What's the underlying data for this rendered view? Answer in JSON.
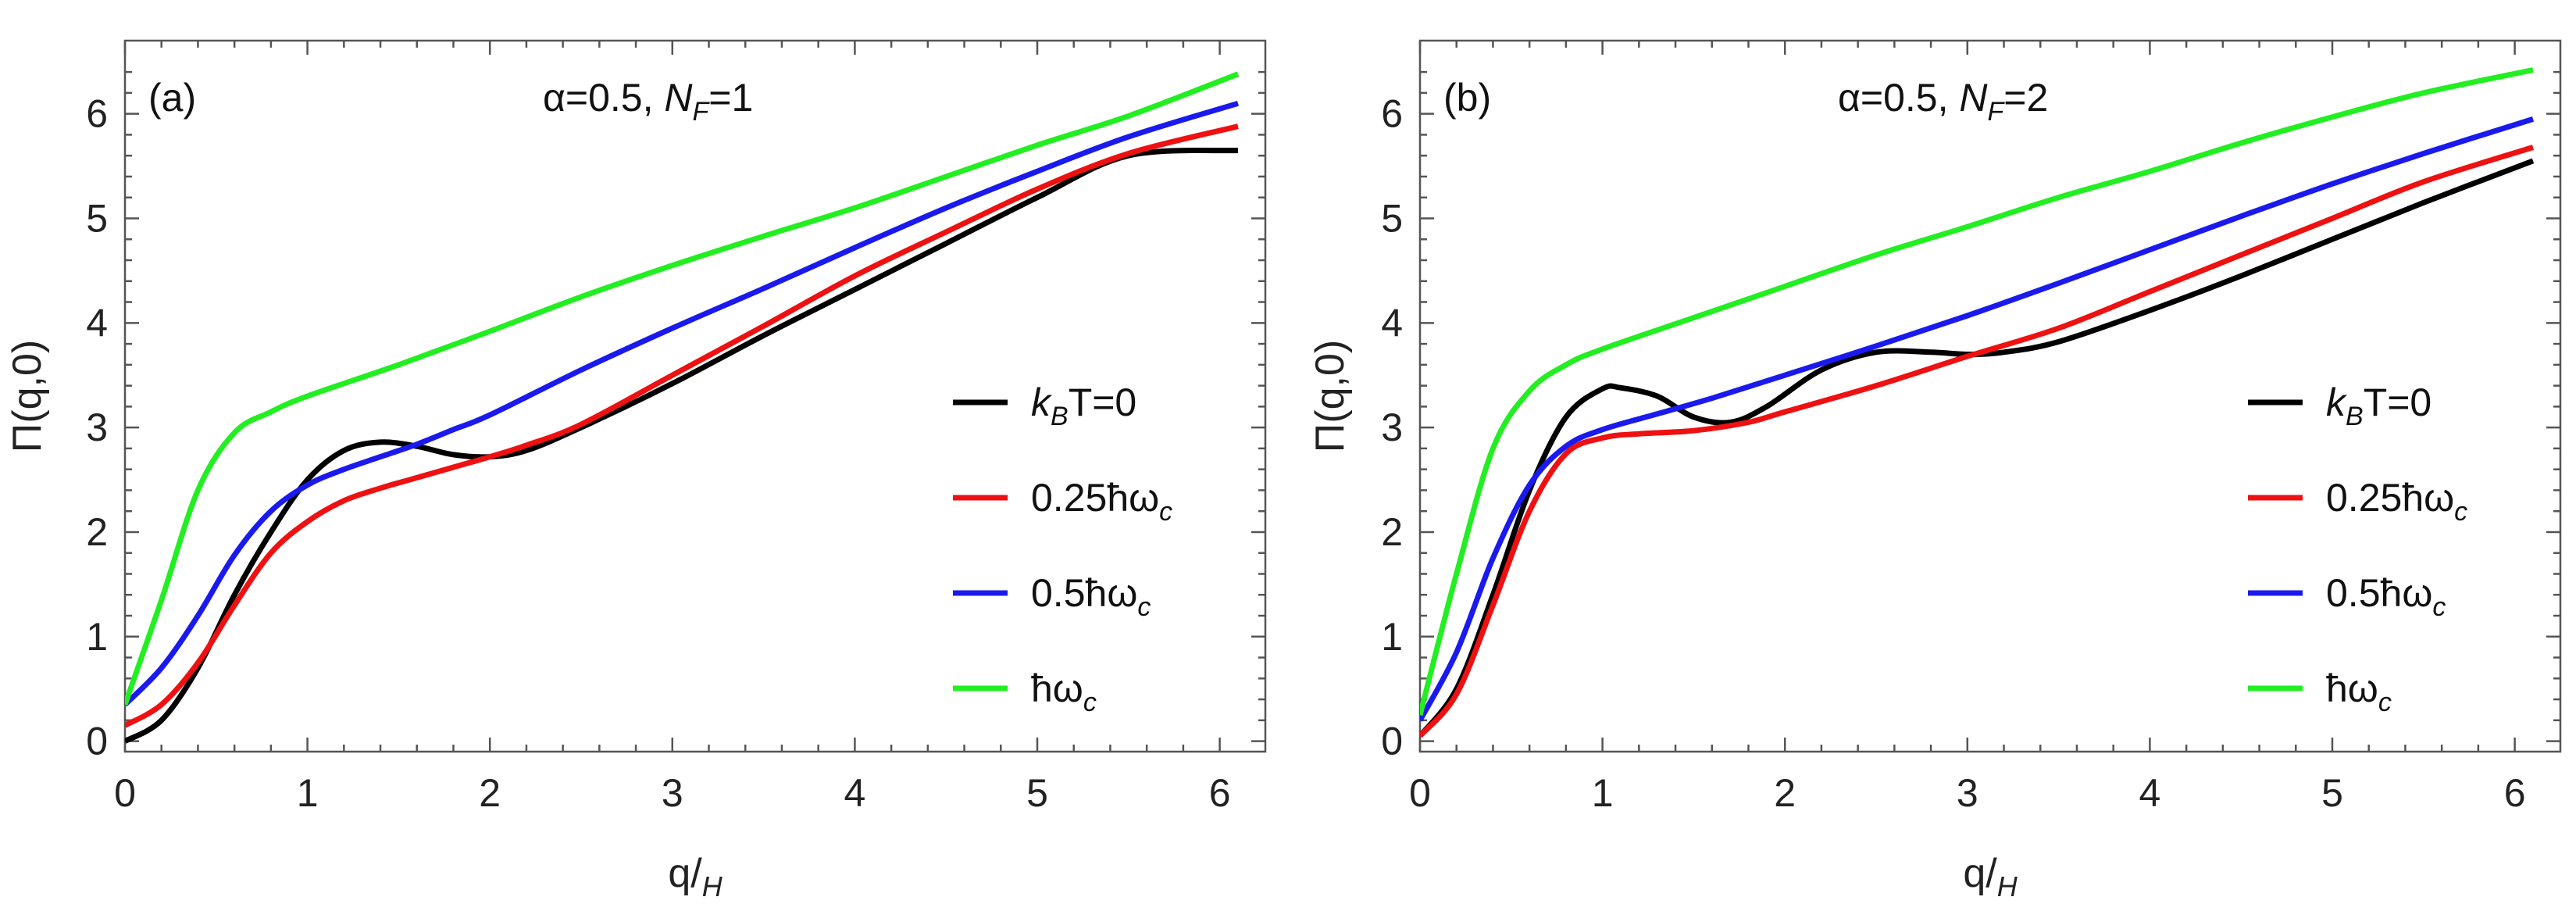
{
  "chart_data": [
    {
      "type": "line",
      "panel_label": "(a)",
      "annotation": {
        "prefix": "α=0.5, ",
        "nf_var": "N",
        "nf_sub": "F",
        "nf_value": "=1"
      },
      "xlabel": {
        "base": "q/",
        "sub": "H"
      },
      "ylabel": "Π(q,0)",
      "xlim": [
        0,
        6.25
      ],
      "ylim": [
        -0.1,
        6.7
      ],
      "xticks": [
        "0",
        "1",
        "2",
        "3",
        "4",
        "5",
        "6"
      ],
      "yticks": [
        "0",
        "1",
        "2",
        "3",
        "4",
        "5",
        "6"
      ],
      "legend_position": "center-right",
      "series": [
        {
          "name": "kBT=0",
          "legend": {
            "var": "k",
            "sub": "B",
            "rest": "T=0"
          },
          "color": "#000000",
          "x": [
            0,
            0.2,
            0.4,
            0.6,
            0.8,
            1.0,
            1.2,
            1.4,
            1.6,
            1.8,
            2.0,
            2.2,
            2.5,
            3.0,
            3.5,
            4.0,
            4.5,
            5.0,
            5.5,
            6.1
          ],
          "y": [
            0.0,
            0.2,
            0.7,
            1.4,
            2.0,
            2.5,
            2.78,
            2.86,
            2.82,
            2.74,
            2.72,
            2.78,
            3.0,
            3.42,
            3.88,
            4.32,
            4.76,
            5.2,
            5.6,
            5.65
          ]
        },
        {
          "name": "0.25ħωc",
          "legend": {
            "var": "0.25ħω",
            "sub": "c",
            "rest": ""
          },
          "color": "#ee1111",
          "x": [
            0,
            0.2,
            0.4,
            0.6,
            0.8,
            1.0,
            1.2,
            1.4,
            1.6,
            1.8,
            2.0,
            2.2,
            2.5,
            3.0,
            3.5,
            4.0,
            4.5,
            5.0,
            5.5,
            6.1
          ],
          "y": [
            0.15,
            0.35,
            0.75,
            1.3,
            1.8,
            2.1,
            2.3,
            2.42,
            2.52,
            2.62,
            2.72,
            2.83,
            3.03,
            3.5,
            3.97,
            4.45,
            4.87,
            5.28,
            5.62,
            5.88
          ]
        },
        {
          "name": "0.5ħωc",
          "legend": {
            "var": "0.5ħω",
            "sub": "c",
            "rest": ""
          },
          "color": "#1a1aee",
          "x": [
            0,
            0.2,
            0.4,
            0.6,
            0.8,
            1.0,
            1.2,
            1.4,
            1.6,
            1.8,
            2.0,
            2.5,
            3.0,
            3.5,
            4.0,
            4.5,
            5.0,
            5.5,
            6.1
          ],
          "y": [
            0.35,
            0.7,
            1.2,
            1.78,
            2.2,
            2.45,
            2.6,
            2.72,
            2.84,
            2.98,
            3.12,
            3.55,
            3.95,
            4.33,
            4.72,
            5.1,
            5.45,
            5.78,
            6.1
          ]
        },
        {
          "name": "ħωc",
          "legend": {
            "var": "ħω",
            "sub": "c",
            "rest": ""
          },
          "color": "#22ee22",
          "x": [
            0,
            0.2,
            0.4,
            0.6,
            0.8,
            1.0,
            1.5,
            2.0,
            2.5,
            3.0,
            3.5,
            4.0,
            4.5,
            5.0,
            5.5,
            6.1
          ],
          "y": [
            0.35,
            1.35,
            2.4,
            2.95,
            3.15,
            3.3,
            3.6,
            3.92,
            4.25,
            4.55,
            4.83,
            5.1,
            5.4,
            5.7,
            5.98,
            6.38
          ]
        }
      ]
    },
    {
      "type": "line",
      "panel_label": "(b)",
      "annotation": {
        "prefix": "α=0.5, ",
        "nf_var": "N",
        "nf_sub": "F",
        "nf_value": "=2"
      },
      "xlabel": {
        "base": "q/",
        "sub": "H"
      },
      "ylabel": "Π(q,0)",
      "xlim": [
        0,
        6.25
      ],
      "ylim": [
        -0.1,
        6.7
      ],
      "xticks": [
        "0",
        "1",
        "2",
        "3",
        "4",
        "5",
        "6"
      ],
      "yticks": [
        "0",
        "1",
        "2",
        "3",
        "4",
        "5",
        "6"
      ],
      "legend_position": "center-right",
      "series": [
        {
          "name": "kBT=0",
          "legend": {
            "var": "k",
            "sub": "B",
            "rest": "T=0"
          },
          "color": "#000000",
          "x": [
            0,
            0.2,
            0.4,
            0.6,
            0.8,
            1.0,
            1.1,
            1.3,
            1.5,
            1.7,
            1.9,
            2.2,
            2.5,
            2.8,
            3.0,
            3.2,
            3.5,
            4.0,
            4.5,
            5.0,
            5.5,
            6.1
          ],
          "y": [
            0.05,
            0.5,
            1.4,
            2.4,
            3.1,
            3.37,
            3.38,
            3.3,
            3.1,
            3.05,
            3.2,
            3.55,
            3.72,
            3.72,
            3.7,
            3.72,
            3.82,
            4.12,
            4.45,
            4.8,
            5.15,
            5.55
          ]
        },
        {
          "name": "0.25ħωc",
          "legend": {
            "var": "0.25ħω",
            "sub": "c",
            "rest": ""
          },
          "color": "#ee1111",
          "x": [
            0,
            0.2,
            0.4,
            0.6,
            0.8,
            1.0,
            1.2,
            1.5,
            1.8,
            2.0,
            2.5,
            3.0,
            3.5,
            4.0,
            4.5,
            5.0,
            5.5,
            6.1
          ],
          "y": [
            0.05,
            0.45,
            1.3,
            2.2,
            2.75,
            2.9,
            2.94,
            2.97,
            3.05,
            3.15,
            3.4,
            3.68,
            3.95,
            4.3,
            4.65,
            5.0,
            5.35,
            5.68
          ]
        },
        {
          "name": "0.5ħωc",
          "legend": {
            "var": "0.5ħω",
            "sub": "c",
            "rest": ""
          },
          "color": "#1a1aee",
          "x": [
            0,
            0.2,
            0.4,
            0.6,
            0.8,
            1.0,
            1.3,
            1.6,
            2.0,
            2.5,
            3.0,
            3.5,
            4.0,
            4.5,
            5.0,
            5.5,
            6.1
          ],
          "y": [
            0.2,
            0.85,
            1.75,
            2.45,
            2.82,
            2.98,
            3.13,
            3.28,
            3.5,
            3.78,
            4.07,
            4.38,
            4.7,
            5.02,
            5.33,
            5.62,
            5.95
          ]
        },
        {
          "name": "ħωc",
          "legend": {
            "var": "ħω",
            "sub": "c",
            "rest": ""
          },
          "color": "#22ee22",
          "x": [
            0,
            0.2,
            0.4,
            0.6,
            0.8,
            1.0,
            1.5,
            2.0,
            2.5,
            3.0,
            3.5,
            4.0,
            4.5,
            5.0,
            5.5,
            6.1
          ],
          "y": [
            0.25,
            1.6,
            2.8,
            3.35,
            3.6,
            3.75,
            4.05,
            4.35,
            4.65,
            4.92,
            5.2,
            5.45,
            5.72,
            5.97,
            6.2,
            6.42
          ]
        }
      ]
    }
  ]
}
